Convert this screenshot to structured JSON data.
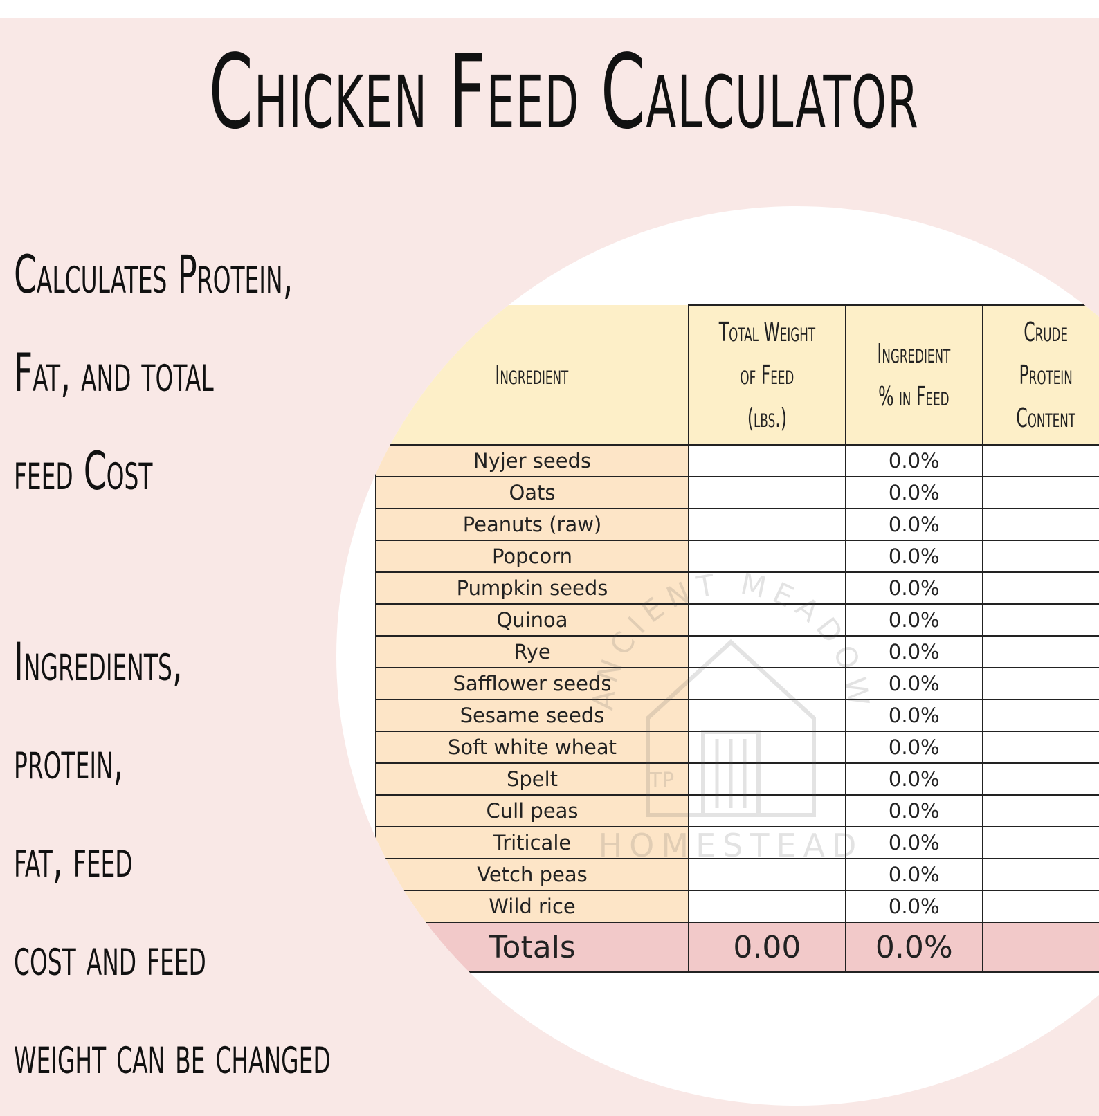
{
  "title": "Chicken Feed Calculator",
  "side_text_1": [
    "Calculates Protein,",
    "Fat, and total",
    "feed Cost"
  ],
  "side_text_2": [
    "Ingredients,",
    "protein,",
    "fat, feed",
    "cost and feed",
    "weight can be changed"
  ],
  "table": {
    "headers": {
      "ingredient": "Ingredient",
      "total_weight": [
        "Total Weight",
        "of Feed",
        "(lbs.)"
      ],
      "ingredient_pct": [
        "Ingredient",
        "% in Feed"
      ],
      "crude_protein": [
        "Crude",
        "Protein",
        "Content"
      ]
    },
    "rows": [
      {
        "name": "Nyjer seeds",
        "pct": "0.0%"
      },
      {
        "name": "Oats",
        "pct": "0.0%"
      },
      {
        "name": "Peanuts (raw)",
        "pct": "0.0%"
      },
      {
        "name": "Popcorn",
        "pct": "0.0%"
      },
      {
        "name": "Pumpkin seeds",
        "pct": "0.0%"
      },
      {
        "name": "Quinoa",
        "pct": "0.0%"
      },
      {
        "name": "Rye",
        "pct": "0.0%"
      },
      {
        "name": "Safflower seeds",
        "pct": "0.0%"
      },
      {
        "name": "Sesame seeds",
        "pct": "0.0%"
      },
      {
        "name": "Soft white wheat",
        "pct": "0.0%"
      },
      {
        "name": "Spelt",
        "pct": "0.0%"
      },
      {
        "name": "Cull peas",
        "pct": "0.0%"
      },
      {
        "name": "Triticale",
        "pct": "0.0%"
      },
      {
        "name": "Vetch peas",
        "pct": "0.0%"
      },
      {
        "name": "Wild rice",
        "pct": "0.0%"
      }
    ],
    "totals": {
      "label": "Totals",
      "weight": "0.00",
      "pct": "0.0%"
    }
  },
  "watermark": {
    "top": "ANCIENT MEADOWS",
    "bottom": "HOMESTEAD",
    "initials": "TP"
  }
}
